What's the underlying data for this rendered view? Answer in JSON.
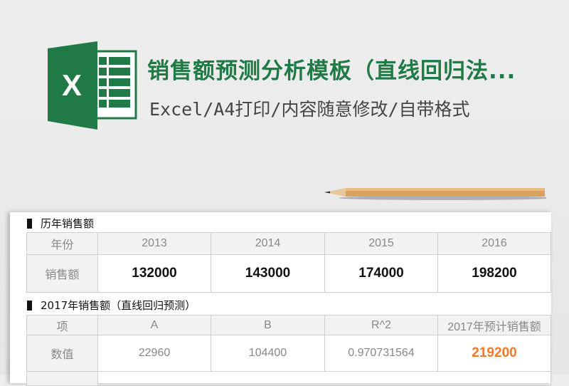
{
  "header": {
    "title": "销售额预测分析模板（直线回归法...",
    "subtitle": "Excel/A4打印/内容随意修改/自带格式",
    "icon": "excel-icon",
    "brand_color": "#1f7a45"
  },
  "section1": {
    "title": "历年销售额",
    "row_headers": [
      "年份",
      "销售额"
    ],
    "years": [
      "2013",
      "2014",
      "2015",
      "2016"
    ],
    "sales": [
      "132000",
      "143000",
      "174000",
      "198200"
    ]
  },
  "section2": {
    "title": "2017年销售额（直线回归预测）",
    "row_headers": [
      "项",
      "数值"
    ],
    "columns": [
      "A",
      "B",
      "R^2",
      "2017年预计销售额"
    ],
    "values": [
      "22960",
      "104400",
      "0.970731564",
      "219200"
    ],
    "highlight_color": "#f07a2a"
  }
}
